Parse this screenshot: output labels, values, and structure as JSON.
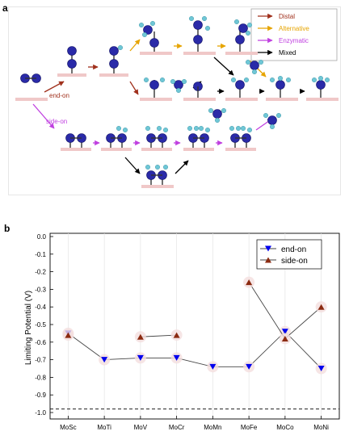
{
  "panel_a": {
    "label": "a",
    "legend": [
      {
        "text": "Distal",
        "color": "#a0301c"
      },
      {
        "text": "Alternative",
        "color": "#e6a400"
      },
      {
        "text": "Enzymatic",
        "color": "#c040e0"
      },
      {
        "text": "Mixed",
        "color": "#000000"
      }
    ],
    "labels": {
      "end_on": "end-on",
      "side_on": "side-on"
    },
    "colors": {
      "end_on": "#a0301c",
      "side_on": "#c040e0",
      "atom_n": "#2a2aa8",
      "atom_h": "#6fc7d6",
      "platform": "#f0c8c8"
    }
  },
  "panel_b": {
    "label": "b"
  },
  "chart_data": {
    "type": "line",
    "categories": [
      "MoSc",
      "MoTi",
      "MoV",
      "MoCr",
      "MoMn",
      "MoFe",
      "MoCo",
      "MoNi"
    ],
    "ylabel": "Limiting Potential (V)",
    "ylim": [
      -1.0,
      0.0
    ],
    "yticks": [
      "0.0",
      "-0.1",
      "-0.2",
      "-0.3",
      "-0.4",
      "-0.5",
      "-0.6",
      "-0.7",
      "-0.8",
      "-0.9",
      "-1.0"
    ],
    "reference_line": -0.98,
    "legend_position": "top-right",
    "series": [
      {
        "name": "end-on",
        "color": "#0000ee",
        "marker": "triangle-down",
        "values": [
          -0.55,
          -0.7,
          -0.69,
          -0.69,
          -0.74,
          -0.74,
          -0.54,
          -0.75
        ]
      },
      {
        "name": "side-on",
        "color": "#8b2a10",
        "marker": "triangle-up",
        "values": [
          -0.56,
          null,
          -0.57,
          -0.56,
          null,
          -0.26,
          -0.58,
          -0.4
        ]
      }
    ]
  }
}
